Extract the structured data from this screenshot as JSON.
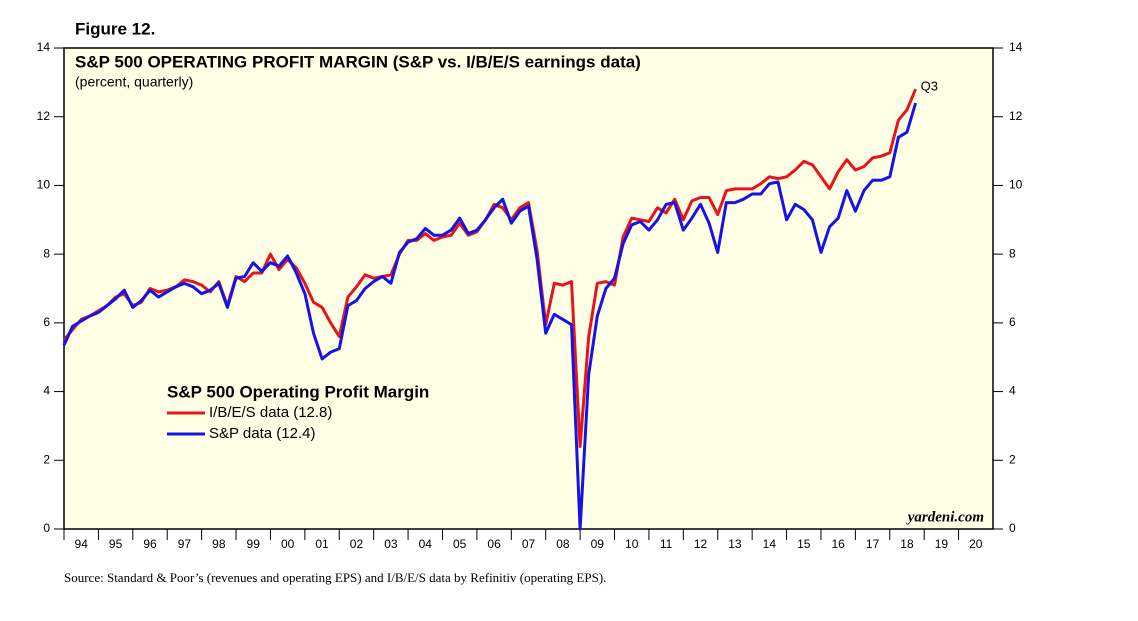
{
  "figure_label": "Figure 12.",
  "source": "Source: Standard & Poor’s (revenues and operating EPS) and I/B/E/S data by Refinitiv (operating EPS).",
  "chart_data": {
    "type": "line",
    "title": "S&P 500 OPERATING PROFIT MARGIN (S&P  vs. I/B/E/S earnings data)",
    "subtitle": "(percent, quarterly)",
    "legend_title": "S&P 500 Operating Profit Margin",
    "annotation": "Q3",
    "watermark": "yardeni.com",
    "background": "#ffffe6",
    "xlim": [
      1994,
      2021
    ],
    "ylim": [
      0,
      14
    ],
    "yticks": [
      0,
      2,
      4,
      6,
      8,
      10,
      12,
      14
    ],
    "xticks": [
      {
        "value": 1994,
        "label": "94"
      },
      {
        "value": 1995,
        "label": "95"
      },
      {
        "value": 1996,
        "label": "96"
      },
      {
        "value": 1997,
        "label": "97"
      },
      {
        "value": 1998,
        "label": "98"
      },
      {
        "value": 1999,
        "label": "99"
      },
      {
        "value": 2000,
        "label": "00"
      },
      {
        "value": 2001,
        "label": "01"
      },
      {
        "value": 2002,
        "label": "02"
      },
      {
        "value": 2003,
        "label": "03"
      },
      {
        "value": 2004,
        "label": "04"
      },
      {
        "value": 2005,
        "label": "05"
      },
      {
        "value": 2006,
        "label": "06"
      },
      {
        "value": 2007,
        "label": "07"
      },
      {
        "value": 2008,
        "label": "08"
      },
      {
        "value": 2009,
        "label": "09"
      },
      {
        "value": 2010,
        "label": "10"
      },
      {
        "value": 2011,
        "label": "11"
      },
      {
        "value": 2012,
        "label": "12"
      },
      {
        "value": 2013,
        "label": "13"
      },
      {
        "value": 2014,
        "label": "14"
      },
      {
        "value": 2015,
        "label": "15"
      },
      {
        "value": 2016,
        "label": "16"
      },
      {
        "value": 2017,
        "label": "17"
      },
      {
        "value": 2018,
        "label": "18"
      },
      {
        "value": 2019,
        "label": "19"
      },
      {
        "value": 2020,
        "label": "20"
      }
    ],
    "x": [
      1994,
      1994.25,
      1994.5,
      1994.75,
      1995,
      1995.25,
      1995.5,
      1995.75,
      1996,
      1996.25,
      1996.5,
      1996.75,
      1997,
      1997.25,
      1997.5,
      1997.75,
      1998,
      1998.25,
      1998.5,
      1998.75,
      1999,
      1999.25,
      1999.5,
      1999.75,
      2000,
      2000.25,
      2000.5,
      2000.75,
      2001,
      2001.25,
      2001.5,
      2001.75,
      2002,
      2002.25,
      2002.5,
      2002.75,
      2003,
      2003.25,
      2003.5,
      2003.75,
      2004,
      2004.25,
      2004.5,
      2004.75,
      2005,
      2005.25,
      2005.5,
      2005.75,
      2006,
      2006.25,
      2006.5,
      2006.75,
      2007,
      2007.25,
      2007.5,
      2007.75,
      2008,
      2008.25,
      2008.5,
      2008.75,
      2009,
      2009.25,
      2009.5,
      2009.75,
      2010,
      2010.25,
      2010.5,
      2010.75,
      2011,
      2011.25,
      2011.5,
      2011.75,
      2012,
      2012.25,
      2012.5,
      2012.75,
      2013,
      2013.25,
      2013.5,
      2013.75,
      2014,
      2014.25,
      2014.5,
      2014.75,
      2015,
      2015.25,
      2015.5,
      2015.75,
      2016,
      2016.25,
      2016.5,
      2016.75,
      2017,
      2017.25,
      2017.5,
      2017.75,
      2018,
      2018.25,
      2018.5,
      2018.75
    ],
    "series": [
      {
        "name": "I/B/E/S data (12.8)",
        "color": "#e8141b",
        "values": [
          5.5,
          5.8,
          6.1,
          6.2,
          6.35,
          6.5,
          6.75,
          6.85,
          6.5,
          6.6,
          7.0,
          6.9,
          6.95,
          7.05,
          7.25,
          7.2,
          7.1,
          6.9,
          7.2,
          6.5,
          7.35,
          7.2,
          7.45,
          7.45,
          8.0,
          7.55,
          7.85,
          7.6,
          7.15,
          6.6,
          6.45,
          6.0,
          5.6,
          6.75,
          7.05,
          7.4,
          7.3,
          7.35,
          7.4,
          8.0,
          8.4,
          8.4,
          8.6,
          8.4,
          8.5,
          8.55,
          8.9,
          8.55,
          8.65,
          9.0,
          9.45,
          9.35,
          9.0,
          9.35,
          9.5,
          8.1,
          5.95,
          7.15,
          7.1,
          7.2,
          2.4,
          5.6,
          7.15,
          7.2,
          7.1,
          8.5,
          9.05,
          9.0,
          8.95,
          9.35,
          9.2,
          9.6,
          9.0,
          9.55,
          9.65,
          9.65,
          9.15,
          9.85,
          9.9,
          9.9,
          9.9,
          10.05,
          10.25,
          10.2,
          10.25,
          10.45,
          10.7,
          10.6,
          10.25,
          9.9,
          10.4,
          10.75,
          10.45,
          10.55,
          10.8,
          10.85,
          10.95,
          11.9,
          12.2,
          12.8
        ]
      },
      {
        "name": "S&P data (12.4)",
        "color": "#1414e6",
        "values": [
          5.35,
          5.9,
          6.05,
          6.2,
          6.3,
          6.5,
          6.7,
          6.95,
          6.45,
          6.65,
          6.95,
          6.75,
          6.9,
          7.05,
          7.15,
          7.05,
          6.85,
          6.95,
          7.15,
          6.45,
          7.3,
          7.35,
          7.75,
          7.5,
          7.75,
          7.65,
          7.95,
          7.45,
          6.85,
          5.7,
          4.95,
          5.15,
          5.25,
          6.5,
          6.65,
          7.0,
          7.2,
          7.35,
          7.15,
          8.05,
          8.35,
          8.45,
          8.75,
          8.55,
          8.55,
          8.7,
          9.05,
          8.6,
          8.7,
          9.0,
          9.35,
          9.6,
          8.9,
          9.25,
          9.4,
          7.85,
          5.7,
          6.25,
          6.1,
          5.95,
          0.0,
          4.5,
          6.2,
          7.0,
          7.3,
          8.3,
          8.85,
          8.95,
          8.7,
          9.0,
          9.45,
          9.5,
          8.7,
          9.05,
          9.45,
          8.9,
          8.05,
          9.5,
          9.5,
          9.6,
          9.75,
          9.75,
          10.05,
          10.1,
          9.0,
          9.45,
          9.3,
          9.0,
          8.05,
          8.8,
          9.05,
          9.85,
          9.25,
          9.85,
          10.15,
          10.15,
          10.25,
          11.4,
          11.55,
          12.4
        ]
      }
    ]
  }
}
